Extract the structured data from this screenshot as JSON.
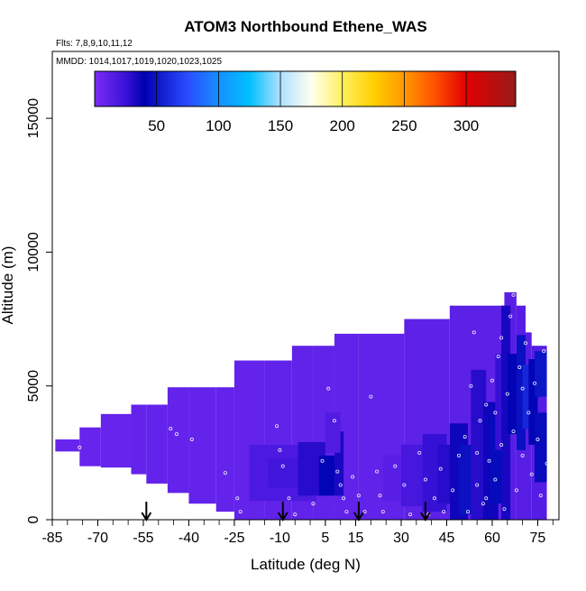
{
  "chart_data": {
    "type": "heatmap",
    "title": "ATOM3 Northbound Ethene_WAS",
    "subtitle_flights": "Flts: 7,8,9,10,11,12",
    "subtitle_dates": "MMDD: 1014,1017,1019,1020,1023,1025",
    "xlabel": "Latitude (deg N)",
    "ylabel": "Altitude (m)",
    "xlim": [
      -85,
      82
    ],
    "ylim": [
      0,
      17500
    ],
    "x_ticks": [
      -85,
      -70,
      -55,
      -40,
      -25,
      -10,
      5,
      15,
      30,
      45,
      60,
      75
    ],
    "x_tick_labels": [
      "-85",
      "-70",
      "-55",
      "-40",
      "-25",
      "-10",
      "5",
      "15",
      "30",
      "45",
      "60",
      "75"
    ],
    "y_ticks": [
      0,
      5000,
      10000,
      15000
    ],
    "y_tick_labels": [
      "0",
      "5000",
      "10000",
      "15000"
    ],
    "colorbar": {
      "min": 0,
      "max": 340,
      "ticks": [
        50,
        100,
        150,
        200,
        250,
        300
      ],
      "tick_labels": [
        "50",
        "100",
        "150",
        "200",
        "250",
        "300"
      ],
      "stops": [
        {
          "v": 0,
          "c": "#7b2cf5"
        },
        {
          "v": 25,
          "c": "#3a12d8"
        },
        {
          "v": 40,
          "c": "#0000b0"
        },
        {
          "v": 75,
          "c": "#2a4cff"
        },
        {
          "v": 100,
          "c": "#1590ff"
        },
        {
          "v": 125,
          "c": "#00c0ff"
        },
        {
          "v": 150,
          "c": "#b0e0ff"
        },
        {
          "v": 175,
          "c": "#fffff0"
        },
        {
          "v": 200,
          "c": "#fff060"
        },
        {
          "v": 225,
          "c": "#ffd000"
        },
        {
          "v": 250,
          "c": "#ff9800"
        },
        {
          "v": 275,
          "c": "#ff5000"
        },
        {
          "v": 300,
          "c": "#e00000"
        },
        {
          "v": 340,
          "c": "#9a1a1a"
        }
      ]
    },
    "cells": [
      {
        "x0": -84,
        "x1": -76,
        "y0": 2550,
        "y1": 3000,
        "v": 8
      },
      {
        "x0": -76,
        "x1": -69,
        "y0": 2000,
        "y1": 3450,
        "v": 8
      },
      {
        "x0": -69,
        "x1": -59,
        "y0": 1950,
        "y1": 3950,
        "v": 8
      },
      {
        "x0": -59,
        "x1": -54,
        "y0": 1700,
        "y1": 4300,
        "v": 9
      },
      {
        "x0": -54,
        "x1": -47,
        "y0": 1350,
        "y1": 4300,
        "v": 9
      },
      {
        "x0": -47,
        "x1": -40,
        "y0": 1000,
        "y1": 4950,
        "v": 9
      },
      {
        "x0": -40,
        "x1": -31,
        "y0": 600,
        "y1": 4950,
        "v": 9
      },
      {
        "x0": -31,
        "x1": -25,
        "y0": 300,
        "y1": 4950,
        "v": 9
      },
      {
        "x0": -25,
        "x1": -15,
        "y0": 0,
        "y1": 5950,
        "v": 9
      },
      {
        "x0": -15,
        "x1": -6,
        "y0": 0,
        "y1": 5950,
        "v": 10
      },
      {
        "x0": -6,
        "x1": 1,
        "y0": 0,
        "y1": 6500,
        "v": 10
      },
      {
        "x0": 1,
        "x1": 8,
        "y0": 0,
        "y1": 6500,
        "v": 10
      },
      {
        "x0": 8,
        "x1": 16,
        "y0": 0,
        "y1": 6950,
        "v": 10
      },
      {
        "x0": 16,
        "x1": 31,
        "y0": 0,
        "y1": 6950,
        "v": 10
      },
      {
        "x0": 31,
        "x1": 46,
        "y0": 0,
        "y1": 7500,
        "v": 11
      },
      {
        "x0": 46,
        "x1": 64,
        "y0": 0,
        "y1": 8000,
        "v": 12
      },
      {
        "x0": 64,
        "x1": 68,
        "y0": 0,
        "y1": 8500,
        "v": 13
      },
      {
        "x0": 68,
        "x1": 71,
        "y0": 0,
        "y1": 8000,
        "v": 14
      },
      {
        "x0": 71,
        "x1": 73,
        "y0": 0,
        "y1": 7000,
        "v": 14
      },
      {
        "x0": 73,
        "x1": 78,
        "y0": 0,
        "y1": 6500,
        "v": 15
      },
      {
        "x0": -20,
        "x1": 2,
        "y0": 700,
        "y1": 2800,
        "v": 18
      },
      {
        "x0": -14,
        "x1": -2,
        "y0": 1200,
        "y1": 2300,
        "v": 22
      },
      {
        "x0": -4,
        "x1": 5,
        "y0": 900,
        "y1": 2900,
        "v": 30
      },
      {
        "x0": 3,
        "x1": 9,
        "y0": 900,
        "y1": 2400,
        "v": 42
      },
      {
        "x0": 8,
        "x1": 11,
        "y0": 900,
        "y1": 3300,
        "v": 33
      },
      {
        "x0": 5,
        "x1": 10,
        "y0": 2500,
        "y1": 4000,
        "v": 16
      },
      {
        "x0": 24,
        "x1": 33,
        "y0": 700,
        "y1": 2400,
        "v": 13
      },
      {
        "x0": 30,
        "x1": 39,
        "y0": 500,
        "y1": 2800,
        "v": 20
      },
      {
        "x0": 37,
        "x1": 45,
        "y0": 300,
        "y1": 3200,
        "v": 26
      },
      {
        "x0": 42,
        "x1": 49,
        "y0": 600,
        "y1": 2800,
        "v": 30
      },
      {
        "x0": 46,
        "x1": 52,
        "y0": 0,
        "y1": 3600,
        "v": 36
      },
      {
        "x0": 49,
        "x1": 56,
        "y0": 200,
        "y1": 2800,
        "v": 48
      },
      {
        "x0": 53,
        "x1": 58,
        "y0": 0,
        "y1": 5600,
        "v": 30
      },
      {
        "x0": 57,
        "x1": 62,
        "y0": 0,
        "y1": 4400,
        "v": 36
      },
      {
        "x0": 59,
        "x1": 63,
        "y0": 600,
        "y1": 3800,
        "v": 45
      },
      {
        "x0": 61,
        "x1": 64,
        "y0": 2600,
        "y1": 6200,
        "v": 26
      },
      {
        "x0": 63,
        "x1": 66,
        "y0": 0,
        "y1": 8000,
        "v": 34
      },
      {
        "x0": 65,
        "x1": 69,
        "y0": 3200,
        "y1": 6200,
        "v": 42
      },
      {
        "x0": 68,
        "x1": 71,
        "y0": 2600,
        "y1": 6900,
        "v": 48
      },
      {
        "x0": 70,
        "x1": 73,
        "y0": 3400,
        "y1": 5800,
        "v": 58
      },
      {
        "x0": 72,
        "x1": 75,
        "y0": 2800,
        "y1": 6000,
        "v": 42
      },
      {
        "x0": 74,
        "x1": 78,
        "y0": 1400,
        "y1": 4000,
        "v": 45
      },
      {
        "x0": 74,
        "x1": 78,
        "y0": 4600,
        "y1": 6300,
        "v": 50
      }
    ],
    "markers_x": [
      -54,
      -9,
      16,
      38
    ],
    "samples": [
      {
        "x": -76,
        "y": 2700
      },
      {
        "x": -46,
        "y": 3400
      },
      {
        "x": -44,
        "y": 3200
      },
      {
        "x": -39,
        "y": 3000
      },
      {
        "x": -28,
        "y": 1750
      },
      {
        "x": -24,
        "y": 800
      },
      {
        "x": -23,
        "y": 300
      },
      {
        "x": -11,
        "y": 3500
      },
      {
        "x": -10,
        "y": 2600
      },
      {
        "x": -9,
        "y": 2000
      },
      {
        "x": -7,
        "y": 800
      },
      {
        "x": -5,
        "y": 200
      },
      {
        "x": 1,
        "y": 600
      },
      {
        "x": 4,
        "y": 2200
      },
      {
        "x": 6,
        "y": 4900
      },
      {
        "x": 8,
        "y": 3700
      },
      {
        "x": 9,
        "y": 1800
      },
      {
        "x": 10,
        "y": 1300
      },
      {
        "x": 11,
        "y": 800
      },
      {
        "x": 12,
        "y": 300
      },
      {
        "x": 14,
        "y": 1600
      },
      {
        "x": 16,
        "y": 900
      },
      {
        "x": 18,
        "y": 300
      },
      {
        "x": 20,
        "y": 4600
      },
      {
        "x": 22,
        "y": 1800
      },
      {
        "x": 23,
        "y": 900
      },
      {
        "x": 24,
        "y": 300
      },
      {
        "x": 28,
        "y": 2000
      },
      {
        "x": 31,
        "y": 1300
      },
      {
        "x": 33,
        "y": 200
      },
      {
        "x": 36,
        "y": 2500
      },
      {
        "x": 38,
        "y": 1500
      },
      {
        "x": 39,
        "y": 200
      },
      {
        "x": 41,
        "y": 800
      },
      {
        "x": 43,
        "y": 1900
      },
      {
        "x": 44,
        "y": 300
      },
      {
        "x": 47,
        "y": 1100
      },
      {
        "x": 49,
        "y": 2400
      },
      {
        "x": 51,
        "y": 3100
      },
      {
        "x": 52,
        "y": 300
      },
      {
        "x": 53,
        "y": 5000
      },
      {
        "x": 54,
        "y": 7000
      },
      {
        "x": 55,
        "y": 1300
      },
      {
        "x": 56,
        "y": 3700
      },
      {
        "x": 57,
        "y": 600
      },
      {
        "x": 58,
        "y": 4300
      },
      {
        "x": 59,
        "y": 2200
      },
      {
        "x": 60,
        "y": 5200
      },
      {
        "x": 61,
        "y": 1500
      },
      {
        "x": 62,
        "y": 6100
      },
      {
        "x": 63,
        "y": 2800
      },
      {
        "x": 64,
        "y": 400
      },
      {
        "x": 65,
        "y": 4700
      },
      {
        "x": 66,
        "y": 7600
      },
      {
        "x": 67,
        "y": 3300
      },
      {
        "x": 68,
        "y": 1100
      },
      {
        "x": 69,
        "y": 5700
      },
      {
        "x": 70,
        "y": 2400
      },
      {
        "x": 71,
        "y": 6600
      },
      {
        "x": 72,
        "y": 4000
      },
      {
        "x": 73,
        "y": 1700
      },
      {
        "x": 74,
        "y": 5100
      },
      {
        "x": 75,
        "y": 3000
      },
      {
        "x": 76,
        "y": 900
      },
      {
        "x": 77,
        "y": 6300
      },
      {
        "x": 78,
        "y": 2100
      },
      {
        "x": 67,
        "y": 8400
      },
      {
        "x": 63,
        "y": 6800
      },
      {
        "x": 58,
        "y": 800
      },
      {
        "x": 55,
        "y": 2500
      },
      {
        "x": 61,
        "y": 4000
      },
      {
        "x": 70,
        "y": 4900
      }
    ]
  }
}
